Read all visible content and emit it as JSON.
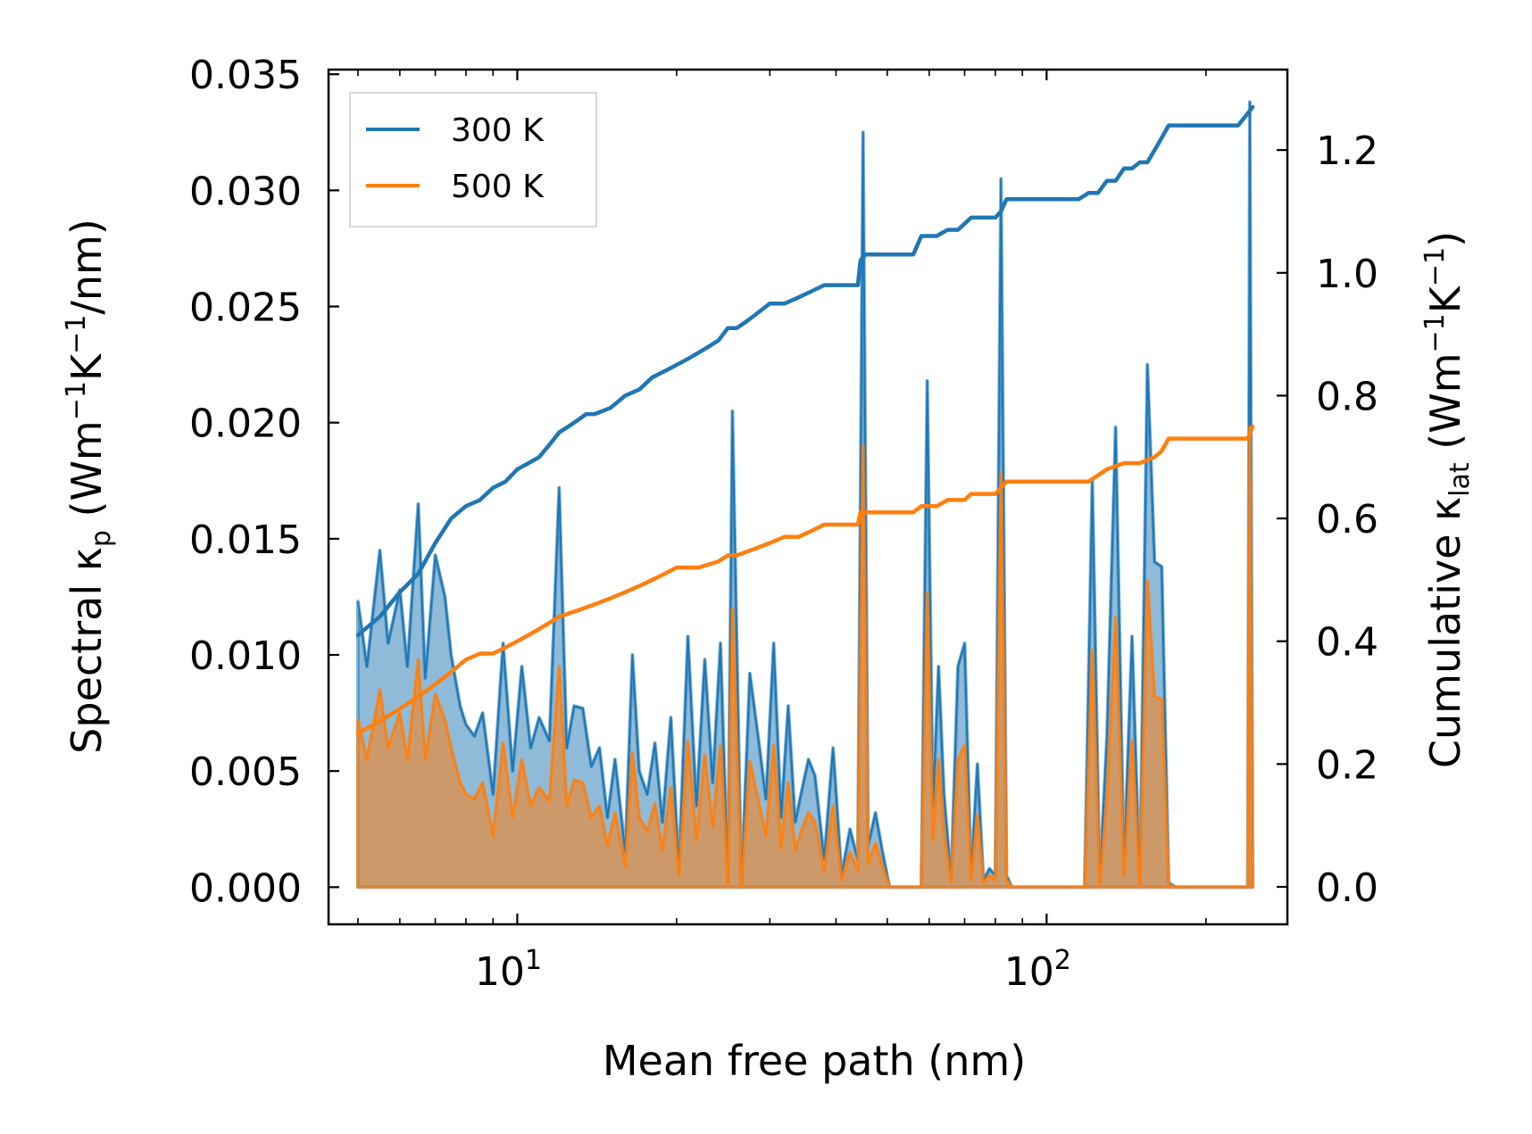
{
  "chart_data": {
    "type": "area+line",
    "xlabel": "Mean free path (nm)",
    "ylabel_left_parts": [
      "Spectral κ",
      "p",
      " (Wm",
      "−1",
      "K",
      "−1",
      "/nm)"
    ],
    "ylabel_right_parts": [
      "Cumulative κ",
      "lat",
      " (Wm",
      "−1",
      "K",
      "−1",
      ")"
    ],
    "xscale": "log",
    "xlim": [
      4.4,
      285
    ],
    "ylim_left": [
      -0.0016,
      0.0352
    ],
    "ylim_right": [
      -0.061,
      1.331
    ],
    "x_major_ticks": [
      10,
      100
    ],
    "x_major_tick_labels": [
      {
        "base": "10",
        "exp": "1"
      },
      {
        "base": "10",
        "exp": "2"
      }
    ],
    "x_minor_ticks": [
      5,
      6,
      7,
      8,
      9,
      20,
      30,
      40,
      50,
      60,
      70,
      80,
      90,
      200
    ],
    "y_left_ticks": [
      0.0,
      0.005,
      0.01,
      0.015,
      0.02,
      0.025,
      0.03,
      0.035
    ],
    "y_left_tick_labels": [
      "0.000",
      "0.005",
      "0.010",
      "0.015",
      "0.020",
      "0.025",
      "0.030",
      "0.035"
    ],
    "y_right_ticks": [
      0.0,
      0.2,
      0.4,
      0.6,
      0.8,
      1.0,
      1.2
    ],
    "y_right_tick_labels": [
      "0.0",
      "0.2",
      "0.4",
      "0.6",
      "0.8",
      "1.0",
      "1.2"
    ],
    "legend": {
      "position": "top-left",
      "entries": [
        "300 K",
        "500 K"
      ]
    },
    "colors": {
      "300K": "#1f77b4",
      "500K": "#ff7f0e",
      "fill300": "#1f77b4",
      "fill500": "#ff7f0e"
    },
    "series": [
      {
        "name": "300 K",
        "role": "spectral",
        "axis": "left",
        "x": [
          5.0,
          5.2,
          5.5,
          5.7,
          6.0,
          6.2,
          6.5,
          6.7,
          7.0,
          7.3,
          7.5,
          7.8,
          8.0,
          8.3,
          8.6,
          9.0,
          9.4,
          9.8,
          10.2,
          10.6,
          11.0,
          11.5,
          12.0,
          12.4,
          12.8,
          13.3,
          13.8,
          14.3,
          14.8,
          15.3,
          16.0,
          16.5,
          17.0,
          17.6,
          18.2,
          18.8,
          19.5,
          20.2,
          21.0,
          21.8,
          22.6,
          23.4,
          24.2,
          25.0,
          25.5,
          26.5,
          27.5,
          28.5,
          29.5,
          30.5,
          31.5,
          32.5,
          33.5,
          34.5,
          35.5,
          36.5,
          38.0,
          39.5,
          41.0,
          42.5,
          44.0,
          45.0,
          46.0,
          47.5,
          49.0,
          50.5,
          52.0,
          54.0,
          56.0,
          58.0,
          59.5,
          61.0,
          62.5,
          64.0,
          66.0,
          68.0,
          70.0,
          72.0,
          74.0,
          76.0,
          78.0,
          80.0,
          82.0,
          84.0,
          86.0,
          88.0,
          92.0,
          100.0,
          110.0,
          118.0,
          122.0,
          126.0,
          130.0,
          135.0,
          140.0,
          145.0,
          150.0,
          155.0,
          160.0,
          165.0,
          170.0,
          175.0,
          180.0,
          190.0,
          200.0,
          220.0,
          240.0,
          242.0,
          245.0
        ],
        "y": [
          0.0123,
          0.0095,
          0.0145,
          0.0105,
          0.0128,
          0.0095,
          0.0165,
          0.009,
          0.0143,
          0.0125,
          0.01,
          0.0078,
          0.007,
          0.0065,
          0.0075,
          0.004,
          0.0105,
          0.005,
          0.0095,
          0.006,
          0.0073,
          0.0063,
          0.0172,
          0.006,
          0.0078,
          0.0077,
          0.0052,
          0.006,
          0.003,
          0.0055,
          0.0015,
          0.01,
          0.005,
          0.004,
          0.0062,
          0.0028,
          0.0073,
          0.0008,
          0.0108,
          0.0035,
          0.0098,
          0.0045,
          0.0105,
          0.0002,
          0.0205,
          0.0,
          0.0092,
          0.0065,
          0.0038,
          0.0105,
          0.003,
          0.0078,
          0.0028,
          0.0042,
          0.0055,
          0.0048,
          0.0012,
          0.006,
          0.0005,
          0.0025,
          0.0012,
          0.0325,
          0.0018,
          0.0032,
          0.0015,
          0.0,
          0.0,
          0.0,
          0.0,
          0.0,
          0.0218,
          0.0035,
          0.0095,
          0.004,
          0.0003,
          0.0095,
          0.0105,
          0.0005,
          0.0053,
          0.0003,
          0.0008,
          0.0005,
          0.0305,
          0.0005,
          0.0,
          0.0,
          0.0,
          0.0,
          0.0,
          0.0,
          0.0175,
          0.0002,
          0.0065,
          0.0198,
          0.0008,
          0.0108,
          0.0,
          0.0225,
          0.014,
          0.0138,
          0.0002,
          0.0,
          0.0,
          0.0,
          0.0,
          0.0,
          0.0,
          0.0338,
          0.0
        ]
      },
      {
        "name": "500 K",
        "role": "spectral",
        "axis": "left",
        "x": [
          5.0,
          5.2,
          5.5,
          5.7,
          6.0,
          6.2,
          6.5,
          6.7,
          7.0,
          7.3,
          7.5,
          7.8,
          8.0,
          8.3,
          8.6,
          9.0,
          9.4,
          9.8,
          10.2,
          10.6,
          11.0,
          11.5,
          12.0,
          12.4,
          12.8,
          13.3,
          13.8,
          14.3,
          14.8,
          15.3,
          16.0,
          16.5,
          17.0,
          17.6,
          18.2,
          18.8,
          19.5,
          20.2,
          21.0,
          21.8,
          22.6,
          23.4,
          24.2,
          25.0,
          25.5,
          26.5,
          27.5,
          28.5,
          29.5,
          30.5,
          31.5,
          32.5,
          33.5,
          34.5,
          35.5,
          36.5,
          38.0,
          39.5,
          41.0,
          42.5,
          44.0,
          45.0,
          46.0,
          47.5,
          49.0,
          50.5,
          52.0,
          54.0,
          56.0,
          58.0,
          59.5,
          61.0,
          62.5,
          64.0,
          66.0,
          68.0,
          70.0,
          72.0,
          74.0,
          76.0,
          78.0,
          80.0,
          82.0,
          84.0,
          86.0,
          88.0,
          92.0,
          100.0,
          110.0,
          118.0,
          122.0,
          126.0,
          130.0,
          135.0,
          140.0,
          145.0,
          150.0,
          155.0,
          160.0,
          165.0,
          170.0,
          175.0,
          180.0,
          190.0,
          200.0,
          220.0,
          240.0,
          242.0,
          245.0
        ],
        "y": [
          0.0072,
          0.0055,
          0.0085,
          0.006,
          0.0075,
          0.0055,
          0.0098,
          0.0055,
          0.0083,
          0.0072,
          0.006,
          0.0045,
          0.004,
          0.0038,
          0.0045,
          0.0022,
          0.0062,
          0.003,
          0.0055,
          0.0035,
          0.0043,
          0.0037,
          0.0095,
          0.0035,
          0.0046,
          0.0045,
          0.003,
          0.0035,
          0.0018,
          0.0032,
          0.0009,
          0.0058,
          0.003,
          0.0024,
          0.0036,
          0.0016,
          0.0043,
          0.0005,
          0.0063,
          0.002,
          0.0057,
          0.0026,
          0.0061,
          0.0001,
          0.012,
          0.0,
          0.0054,
          0.0038,
          0.0022,
          0.0061,
          0.0017,
          0.0045,
          0.0016,
          0.0025,
          0.0032,
          0.0028,
          0.0007,
          0.0035,
          0.0003,
          0.0015,
          0.0007,
          0.019,
          0.001,
          0.0019,
          0.0009,
          0.0,
          0.0,
          0.0,
          0.0,
          0.0,
          0.0127,
          0.002,
          0.0055,
          0.0023,
          0.0002,
          0.0055,
          0.0061,
          0.0003,
          0.0031,
          0.0002,
          0.0005,
          0.0003,
          0.0178,
          0.0003,
          0.0,
          0.0,
          0.0,
          0.0,
          0.0,
          0.0,
          0.0102,
          0.0001,
          0.0038,
          0.0116,
          0.0005,
          0.0063,
          0.0,
          0.0132,
          0.0082,
          0.0081,
          0.0001,
          0.0,
          0.0,
          0.0,
          0.0,
          0.0,
          0.0,
          0.0198,
          0.0
        ]
      },
      {
        "name": "300 K",
        "role": "cumulative",
        "axis": "right",
        "x": [
          5.0,
          5.5,
          6.0,
          6.5,
          7.0,
          7.5,
          8.0,
          8.5,
          9.0,
          9.5,
          10.0,
          10.5,
          11.0,
          11.5,
          12.0,
          12.5,
          13.0,
          13.5,
          14.0,
          15.0,
          16.0,
          17.0,
          18.0,
          19.0,
          20.0,
          21.0,
          22.0,
          23.0,
          24.0,
          25.0,
          26.0,
          27.0,
          28.0,
          30.0,
          32.0,
          34.0,
          36.0,
          38.0,
          40.0,
          42.0,
          44.0,
          44.5,
          45.5,
          48.0,
          52.0,
          56.0,
          58.0,
          60.0,
          62.0,
          65.0,
          68.0,
          70.0,
          72.0,
          75.0,
          80.0,
          82.0,
          84.0,
          86.0,
          90.0,
          100.0,
          115.0,
          120.0,
          125.0,
          130.0,
          135.0,
          140.0,
          145.0,
          150.0,
          155.0,
          160.0,
          165.0,
          170.0,
          175.0,
          200.0,
          230.0,
          240.0,
          245.0
        ],
        "y": [
          0.41,
          0.44,
          0.48,
          0.51,
          0.56,
          0.6,
          0.62,
          0.63,
          0.65,
          0.66,
          0.68,
          0.69,
          0.7,
          0.72,
          0.74,
          0.75,
          0.76,
          0.77,
          0.77,
          0.78,
          0.8,
          0.81,
          0.83,
          0.84,
          0.85,
          0.86,
          0.87,
          0.88,
          0.89,
          0.91,
          0.91,
          0.92,
          0.93,
          0.95,
          0.95,
          0.96,
          0.97,
          0.98,
          0.98,
          0.98,
          0.98,
          1.02,
          1.03,
          1.03,
          1.03,
          1.03,
          1.06,
          1.06,
          1.06,
          1.07,
          1.07,
          1.08,
          1.09,
          1.09,
          1.09,
          1.1,
          1.12,
          1.12,
          1.12,
          1.12,
          1.12,
          1.13,
          1.13,
          1.15,
          1.15,
          1.17,
          1.17,
          1.18,
          1.18,
          1.2,
          1.22,
          1.24,
          1.24,
          1.24,
          1.24,
          1.26,
          1.27
        ]
      },
      {
        "name": "500 K",
        "role": "cumulative",
        "axis": "right",
        "x": [
          5.0,
          5.5,
          6.0,
          6.5,
          7.0,
          7.5,
          8.0,
          8.5,
          9.0,
          9.5,
          10.0,
          10.5,
          11.0,
          11.5,
          12.0,
          13.0,
          14.0,
          15.0,
          16.0,
          17.0,
          18.0,
          19.0,
          20.0,
          22.0,
          24.0,
          25.0,
          26.0,
          28.0,
          30.0,
          32.0,
          34.0,
          36.0,
          38.0,
          40.0,
          42.0,
          44.0,
          44.5,
          45.5,
          48.0,
          52.0,
          56.0,
          58.0,
          60.0,
          62.0,
          65.0,
          68.0,
          70.0,
          72.0,
          75.0,
          80.0,
          82.0,
          84.0,
          86.0,
          100.0,
          120.0,
          125.0,
          130.0,
          140.0,
          150.0,
          160.0,
          165.0,
          170.0,
          175.0,
          200.0,
          240.0,
          245.0
        ],
        "y": [
          0.25,
          0.27,
          0.29,
          0.31,
          0.33,
          0.35,
          0.37,
          0.38,
          0.38,
          0.39,
          0.4,
          0.41,
          0.42,
          0.43,
          0.44,
          0.45,
          0.46,
          0.47,
          0.48,
          0.49,
          0.5,
          0.51,
          0.52,
          0.52,
          0.53,
          0.54,
          0.54,
          0.55,
          0.56,
          0.57,
          0.57,
          0.58,
          0.59,
          0.59,
          0.59,
          0.59,
          0.61,
          0.61,
          0.61,
          0.61,
          0.61,
          0.62,
          0.62,
          0.62,
          0.63,
          0.63,
          0.63,
          0.64,
          0.64,
          0.64,
          0.65,
          0.66,
          0.66,
          0.66,
          0.66,
          0.67,
          0.68,
          0.69,
          0.69,
          0.7,
          0.71,
          0.73,
          0.73,
          0.73,
          0.73,
          0.75
        ]
      }
    ]
  }
}
